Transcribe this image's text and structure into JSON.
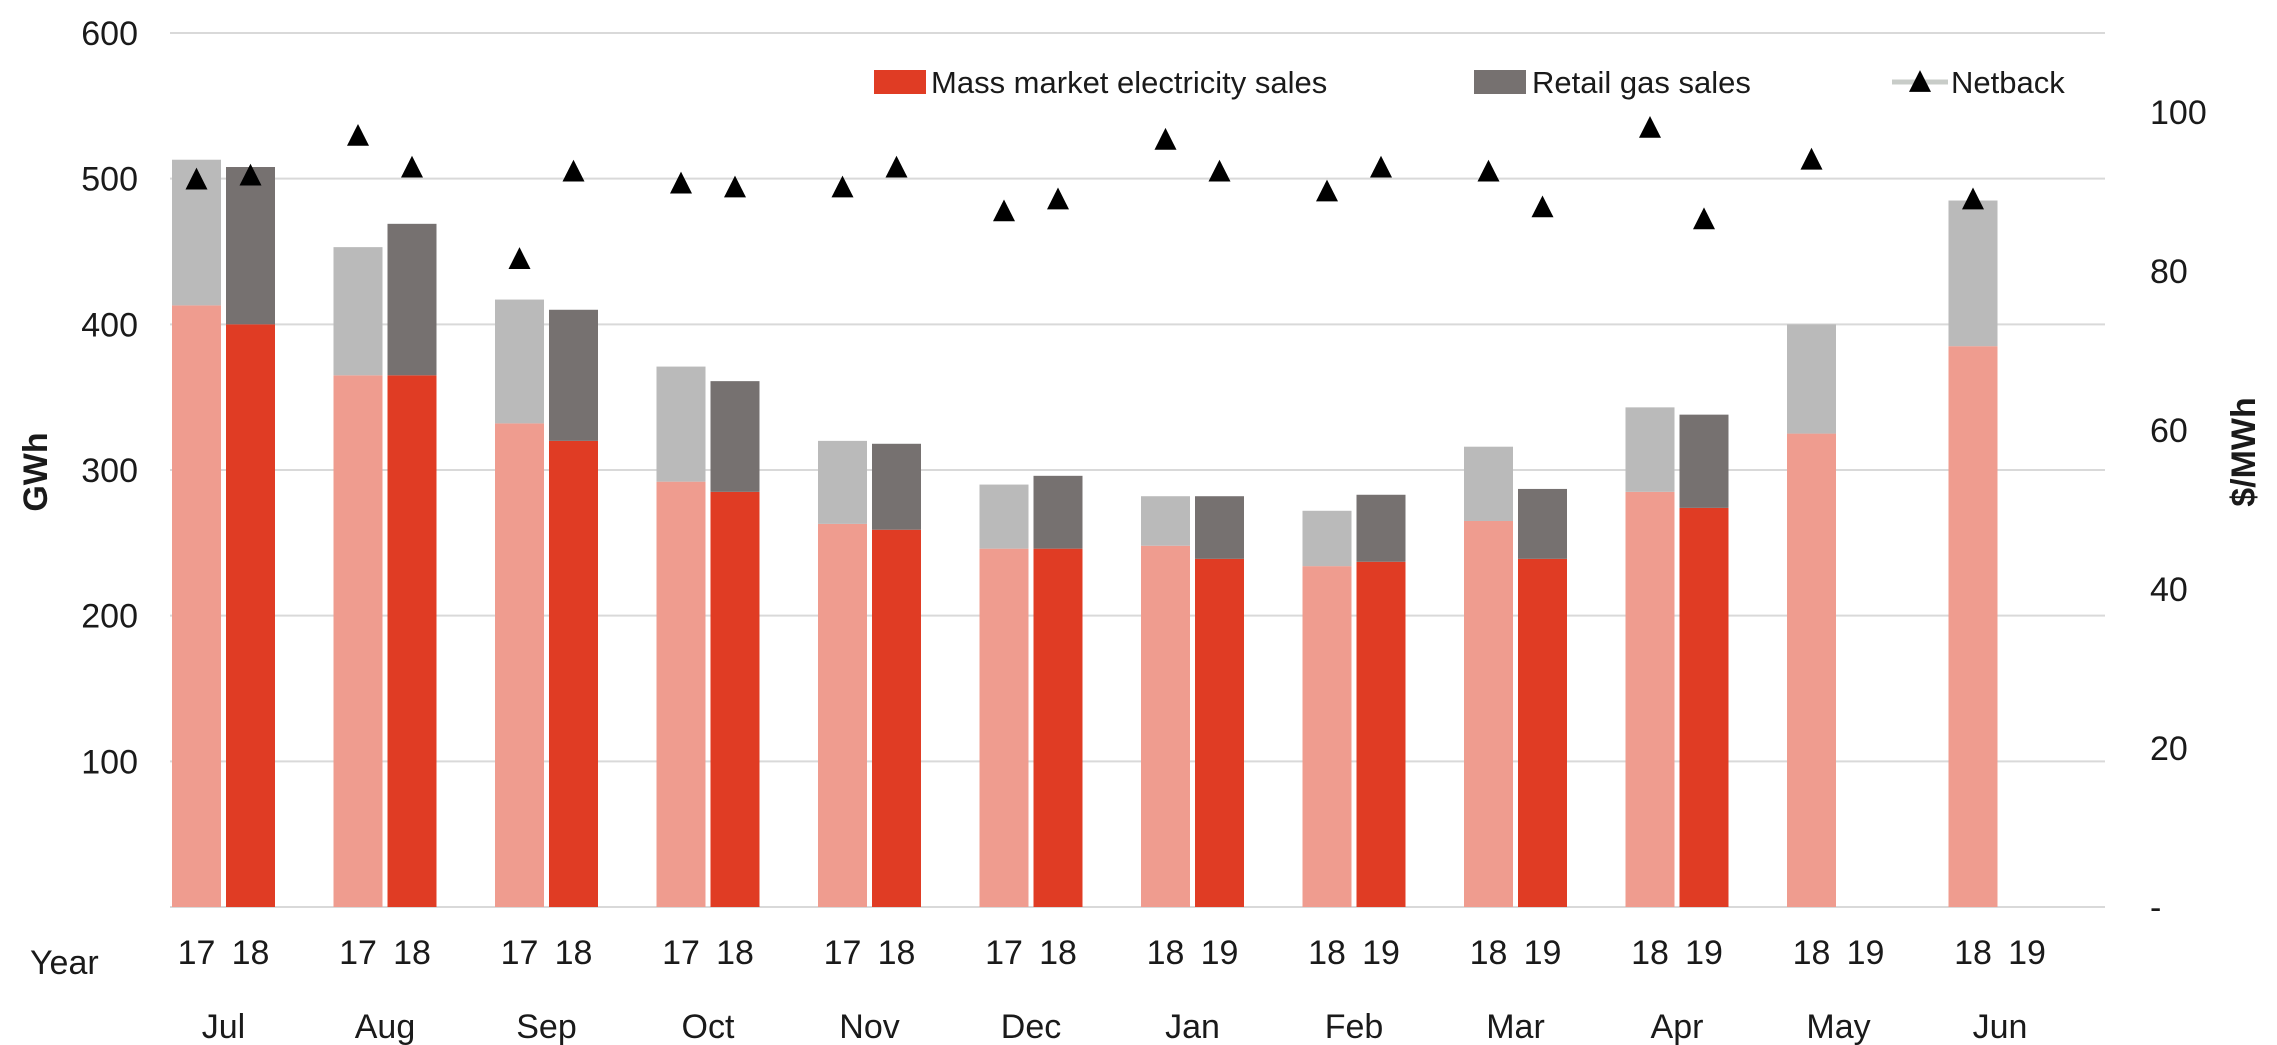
{
  "chart_data": {
    "type": "bar",
    "categories": [
      "Jul",
      "Aug",
      "Sep",
      "Oct",
      "Nov",
      "Dec",
      "Jan",
      "Feb",
      "Mar",
      "Apr",
      "May",
      "Jun"
    ],
    "period_labels": [
      [
        "17",
        "18"
      ],
      [
        "17",
        "18"
      ],
      [
        "17",
        "18"
      ],
      [
        "17",
        "18"
      ],
      [
        "17",
        "18"
      ],
      [
        "17",
        "18"
      ],
      [
        "18",
        "19"
      ],
      [
        "18",
        "19"
      ],
      [
        "18",
        "19"
      ],
      [
        "18",
        "19"
      ],
      [
        "18",
        "19"
      ],
      [
        "18",
        "19"
      ]
    ],
    "period_axis_label": "Year",
    "series": [
      {
        "name": "Mass market electricity sales",
        "axis": "left",
        "stack": "electricity_and_gas",
        "prior_year": [
          413,
          365,
          332,
          292,
          263,
          246,
          248,
          234,
          265,
          285,
          325,
          385
        ],
        "current_year": [
          400,
          365,
          320,
          285,
          259,
          246,
          239,
          237,
          239,
          274,
          null,
          null
        ]
      },
      {
        "name": "Retail gas sales",
        "axis": "left",
        "stack": "electricity_and_gas",
        "prior_year": [
          100,
          88,
          85,
          79,
          57,
          44,
          34,
          38,
          51,
          58,
          75,
          100
        ],
        "current_year": [
          108,
          104,
          90,
          76,
          59,
          50,
          43,
          46,
          48,
          64,
          null,
          null
        ]
      },
      {
        "name": "Netback",
        "axis": "right",
        "marker": "triangle",
        "prior_year": [
          91.5,
          97,
          81.5,
          91,
          90.5,
          87.5,
          96.5,
          90,
          92.5,
          98,
          94,
          89
        ],
        "current_year": [
          92,
          93,
          92.5,
          90.5,
          93,
          89,
          92.5,
          93,
          88,
          86.5,
          null,
          null
        ]
      }
    ],
    "y_left": {
      "label": "GWh",
      "ylim": [
        0,
        600
      ],
      "ticks": [
        "600",
        "500",
        "400",
        "300",
        "200",
        "100"
      ],
      "tick_values": [
        600,
        500,
        400,
        300,
        200,
        100
      ],
      "zero_label": ""
    },
    "y_right": {
      "label": "$/MWh",
      "ylim": [
        0,
        110
      ],
      "ticks": [
        "100",
        "80",
        "60",
        "40",
        "20",
        "-"
      ],
      "tick_values": [
        100,
        80,
        60,
        40,
        20,
        0
      ]
    },
    "legend": {
      "position": "top-right"
    },
    "grid": true,
    "colors": {
      "electricity_prior": "#ef9c8f",
      "electricity_current": "#e03c24",
      "gas_prior": "#bababa",
      "gas_current": "#767170",
      "netback": "#000000",
      "gridline": "#d9d9d9",
      "legend_electricity": "#e03c24",
      "legend_gas": "#767170"
    }
  }
}
